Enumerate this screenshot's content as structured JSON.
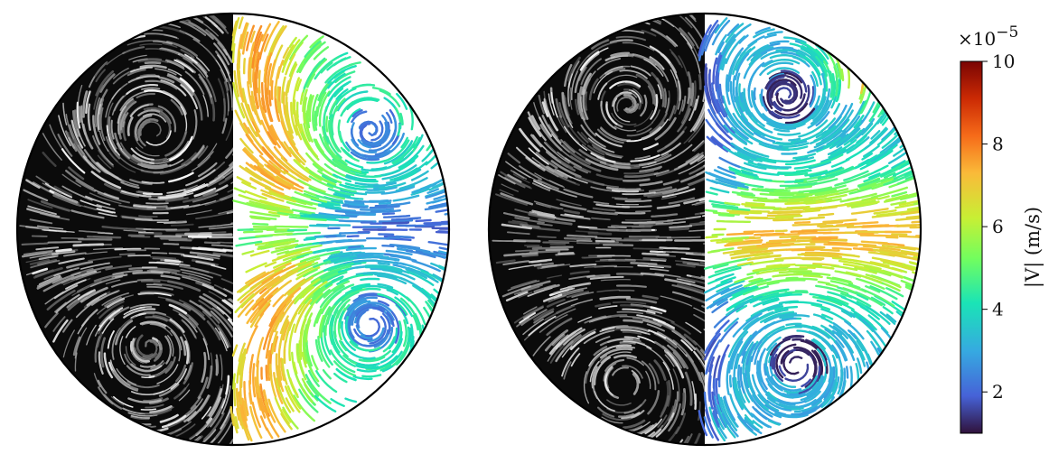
{
  "chart_data": [
    {
      "type": "other",
      "panel": "left",
      "description": "Circular cross-section: left half shows grayscale streak image, right half shows colored velocity streamlines with two counter-rotating vortices (upper and lower).",
      "vortex_count": 2
    },
    {
      "type": "other",
      "panel": "right",
      "description": "Circular cross-section: left half grayscale streak image, right half colored velocity streamlines; high-velocity jet across the middle and two vortices.",
      "vortex_count": 2
    }
  ],
  "colorbar": {
    "label": "|V| (m/s)",
    "multiplier_base": "×10",
    "multiplier_exponent": "−5",
    "vmin": 1,
    "vmax": 10,
    "ticks": [
      "2",
      "4",
      "6",
      "8",
      "10"
    ],
    "tick_values": [
      2,
      4,
      6,
      8,
      10
    ],
    "colormap": "turbo",
    "colors": [
      "#30123b",
      "#4662d7",
      "#36a9e1",
      "#1ae4b6",
      "#72fe5e",
      "#c8ef34",
      "#faba39",
      "#f66b19",
      "#cb2a04",
      "#7a0403"
    ]
  }
}
